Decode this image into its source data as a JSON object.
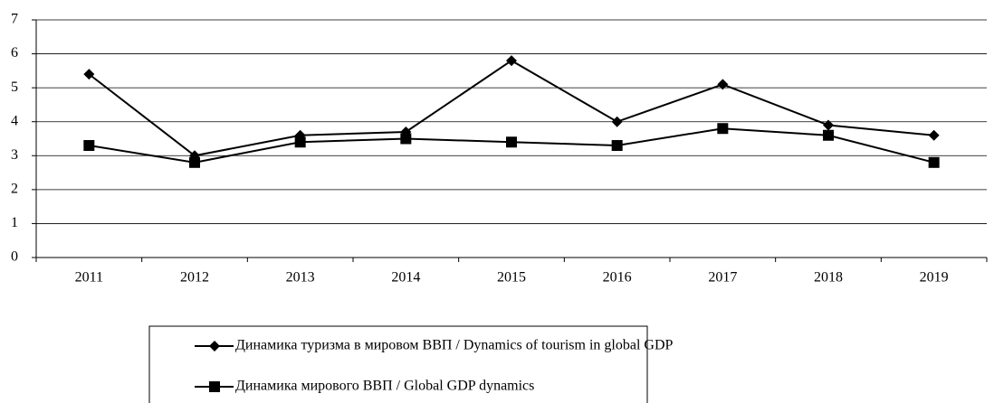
{
  "chart_data": {
    "type": "line",
    "categories": [
      "2011",
      "2012",
      "2013",
      "2014",
      "2015",
      "2016",
      "2017",
      "2018",
      "2019"
    ],
    "series": [
      {
        "name": "Динамика туризма в мировом ВВП /  Dynamics of tourism in global GDP",
        "color": "#000000",
        "marker": "diamond",
        "values": [
          5.4,
          3.0,
          3.6,
          3.7,
          5.8,
          4.0,
          5.1,
          3.9,
          3.6
        ]
      },
      {
        "name": "Динамика мирового ВВП / Global GDP dynamics",
        "color": "#000000",
        "marker": "square",
        "values": [
          3.3,
          2.8,
          3.4,
          3.5,
          3.4,
          3.3,
          3.8,
          3.6,
          2.8
        ]
      }
    ],
    "ylim": [
      0,
      7
    ],
    "yticks": [
      0,
      1,
      2,
      3,
      4,
      5,
      6,
      7
    ],
    "grid": true,
    "legend": "bottom"
  }
}
